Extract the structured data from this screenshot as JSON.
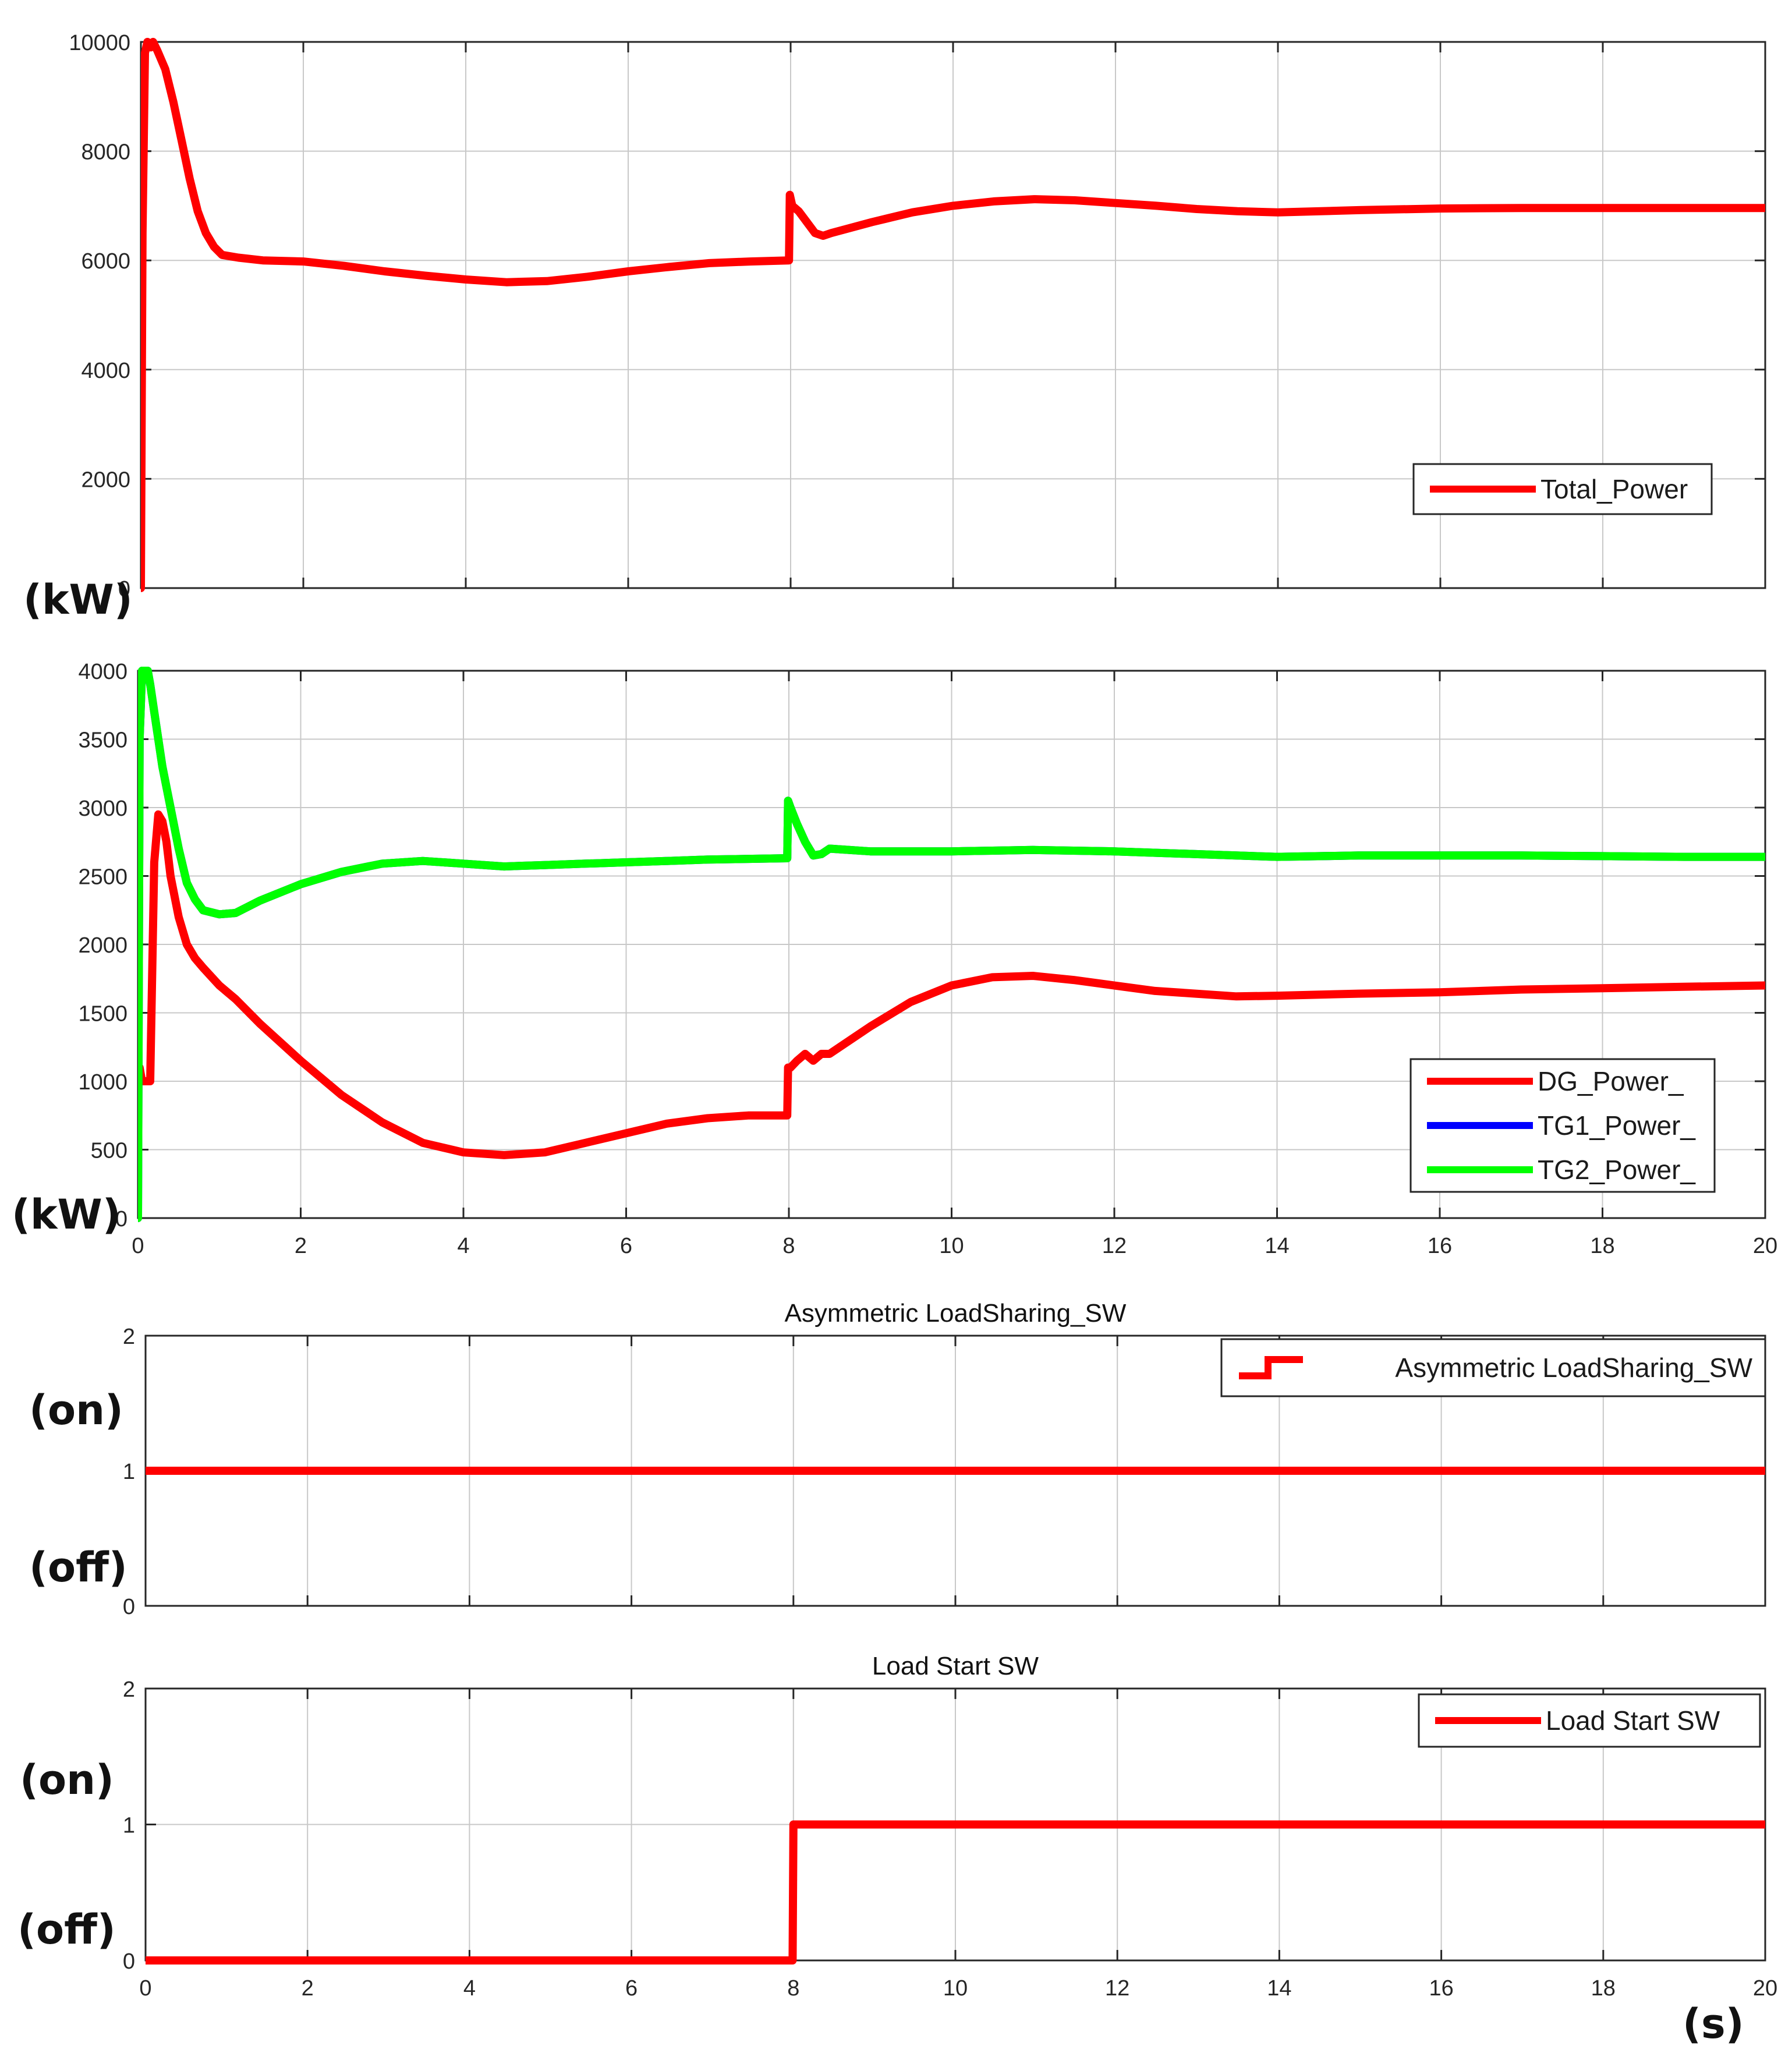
{
  "chart_data": [
    {
      "type": "line",
      "title": "",
      "ylabel": "(kW)",
      "xlim": [
        0,
        20
      ],
      "ylim": [
        0,
        10000
      ],
      "yticks": [
        0,
        2000,
        4000,
        6000,
        8000,
        10000
      ],
      "grid": true,
      "legend_position": "bottom-right",
      "series": [
        {
          "name": "Total_Power",
          "color": "#ff0000",
          "x": [
            0,
            0.02,
            0.05,
            0.08,
            0.12,
            0.15,
            0.2,
            0.3,
            0.4,
            0.5,
            0.6,
            0.7,
            0.8,
            0.9,
            1.0,
            1.2,
            1.5,
            2,
            2.5,
            3,
            3.5,
            4,
            4.5,
            5,
            5.5,
            6,
            6.5,
            7,
            7.5,
            7.98,
            7.99,
            8.02,
            8.1,
            8.2,
            8.3,
            8.4,
            8.5,
            9,
            9.5,
            10,
            10.5,
            11,
            11.5,
            12,
            12.5,
            13,
            13.5,
            14,
            15,
            16,
            17,
            18,
            19,
            20
          ],
          "values": [
            0,
            6500,
            9800,
            10000,
            9900,
            10000,
            9850,
            9500,
            8900,
            8200,
            7500,
            6900,
            6500,
            6250,
            6100,
            6050,
            6000,
            5980,
            5900,
            5800,
            5720,
            5650,
            5600,
            5620,
            5700,
            5800,
            5880,
            5950,
            5980,
            6000,
            7200,
            7000,
            6900,
            6700,
            6500,
            6450,
            6500,
            6700,
            6880,
            7000,
            7080,
            7120,
            7100,
            7050,
            7000,
            6940,
            6900,
            6880,
            6920,
            6950,
            6960,
            6960,
            6960,
            6960
          ]
        }
      ]
    },
    {
      "type": "line",
      "title": "",
      "ylabel": "(kW)",
      "xlim": [
        0,
        20
      ],
      "ylim": [
        0,
        4000
      ],
      "yticks": [
        0,
        500,
        1000,
        1500,
        2000,
        2500,
        3000,
        3500,
        4000
      ],
      "xticks": [
        0,
        2,
        4,
        6,
        8,
        10,
        12,
        14,
        16,
        18,
        20
      ],
      "grid": true,
      "legend_position": "bottom-right",
      "series": [
        {
          "name": "DG_Power_",
          "color": "#ff0000",
          "x": [
            0,
            0.01,
            0.02,
            0.05,
            0.08,
            0.1,
            0.12,
            0.15,
            0.2,
            0.25,
            0.3,
            0.35,
            0.4,
            0.5,
            0.6,
            0.7,
            0.8,
            1.0,
            1.2,
            1.5,
            2,
            2.5,
            3,
            3.5,
            4,
            4.5,
            5,
            5.5,
            6,
            6.5,
            7,
            7.5,
            7.98,
            7.99,
            8.02,
            8.1,
            8.2,
            8.3,
            8.4,
            8.5,
            9,
            9.5,
            10,
            10.5,
            11,
            11.5,
            12,
            12.5,
            13,
            13.5,
            14,
            15,
            16,
            17,
            18,
            19,
            20
          ],
          "values": [
            1000,
            1000,
            1100,
            1000,
            1000,
            1000,
            1000,
            1000,
            2600,
            2950,
            2900,
            2750,
            2500,
            2200,
            2000,
            1900,
            1830,
            1700,
            1600,
            1420,
            1150,
            900,
            700,
            550,
            480,
            460,
            480,
            550,
            620,
            690,
            730,
            750,
            750,
            1100,
            1100,
            1150,
            1200,
            1150,
            1200,
            1200,
            1400,
            1580,
            1700,
            1760,
            1770,
            1740,
            1700,
            1660,
            1640,
            1620,
            1625,
            1640,
            1650,
            1670,
            1680,
            1690,
            1700
          ]
        },
        {
          "name": "TG1_Power_",
          "color": "#0000ff",
          "x": [
            0,
            0.02,
            0.05,
            0.08,
            0.12,
            0.15,
            0.2,
            0.3,
            0.4,
            0.5,
            0.6,
            0.7,
            0.8,
            1.0,
            1.2,
            1.5,
            2,
            2.5,
            3,
            3.5,
            4,
            4.5,
            5,
            5.5,
            6,
            6.5,
            7,
            7.5,
            7.98,
            7.99,
            8.02,
            8.1,
            8.2,
            8.3,
            8.4,
            8.5,
            9,
            9.5,
            10,
            10.5,
            11,
            11.5,
            12,
            12.5,
            13,
            13.5,
            14,
            15,
            16,
            17,
            18,
            19,
            20
          ],
          "values": [
            0,
            3500,
            4000,
            4000,
            4000,
            3900,
            3700,
            3300,
            3000,
            2700,
            2450,
            2330,
            2250,
            2220,
            2230,
            2320,
            2440,
            2530,
            2590,
            2610,
            2590,
            2570,
            2580,
            2590,
            2600,
            2610,
            2620,
            2625,
            2630,
            3050,
            3000,
            2880,
            2750,
            2650,
            2660,
            2700,
            2680,
            2680,
            2680,
            2685,
            2690,
            2685,
            2680,
            2670,
            2660,
            2650,
            2640,
            2650,
            2650,
            2650,
            2645,
            2640,
            2640
          ]
        },
        {
          "name": "TG2_Power_",
          "color": "#00ff00",
          "x": [
            0,
            0.02,
            0.05,
            0.08,
            0.12,
            0.15,
            0.2,
            0.3,
            0.4,
            0.5,
            0.6,
            0.7,
            0.8,
            1.0,
            1.2,
            1.5,
            2,
            2.5,
            3,
            3.5,
            4,
            4.5,
            5,
            5.5,
            6,
            6.5,
            7,
            7.5,
            7.98,
            7.99,
            8.02,
            8.1,
            8.2,
            8.3,
            8.4,
            8.5,
            9,
            9.5,
            10,
            10.5,
            11,
            11.5,
            12,
            12.5,
            13,
            13.5,
            14,
            15,
            16,
            17,
            18,
            19,
            20
          ],
          "values": [
            0,
            3500,
            4000,
            4000,
            4000,
            3900,
            3700,
            3300,
            3000,
            2700,
            2450,
            2330,
            2250,
            2220,
            2230,
            2320,
            2440,
            2530,
            2590,
            2610,
            2590,
            2570,
            2580,
            2590,
            2600,
            2610,
            2620,
            2625,
            2630,
            3050,
            3000,
            2880,
            2750,
            2650,
            2660,
            2700,
            2680,
            2680,
            2680,
            2685,
            2690,
            2685,
            2680,
            2670,
            2660,
            2650,
            2640,
            2650,
            2650,
            2650,
            2645,
            2640,
            2640
          ]
        }
      ]
    },
    {
      "type": "line",
      "title": "Asymmetric LoadSharing_SW",
      "ylabel": "",
      "xlim": [
        0,
        20
      ],
      "ylim": [
        0,
        2
      ],
      "yticks": [
        0,
        1,
        2
      ],
      "grid": true,
      "legend_position": "top-right",
      "state_labels": [
        "(on)",
        "(off)"
      ],
      "series": [
        {
          "name": "Asymmetric LoadSharing_SW",
          "color": "#ff0000",
          "x": [
            0,
            20
          ],
          "values": [
            1,
            1
          ]
        }
      ]
    },
    {
      "type": "line",
      "title": "Load Start SW",
      "ylabel": "",
      "xlabel": "(s)",
      "xlim": [
        0,
        20
      ],
      "ylim": [
        0,
        2
      ],
      "yticks": [
        0,
        1,
        2
      ],
      "xticks": [
        0,
        2,
        4,
        6,
        8,
        10,
        12,
        14,
        16,
        18,
        20
      ],
      "grid": true,
      "legend_position": "top-right",
      "state_labels": [
        "(on)",
        "(off)"
      ],
      "series": [
        {
          "name": "Load Start SW",
          "color": "#ff0000",
          "x": [
            0,
            7.98,
            7.99,
            8.0,
            20
          ],
          "values": [
            0,
            0,
            0,
            1,
            1
          ]
        }
      ]
    }
  ]
}
